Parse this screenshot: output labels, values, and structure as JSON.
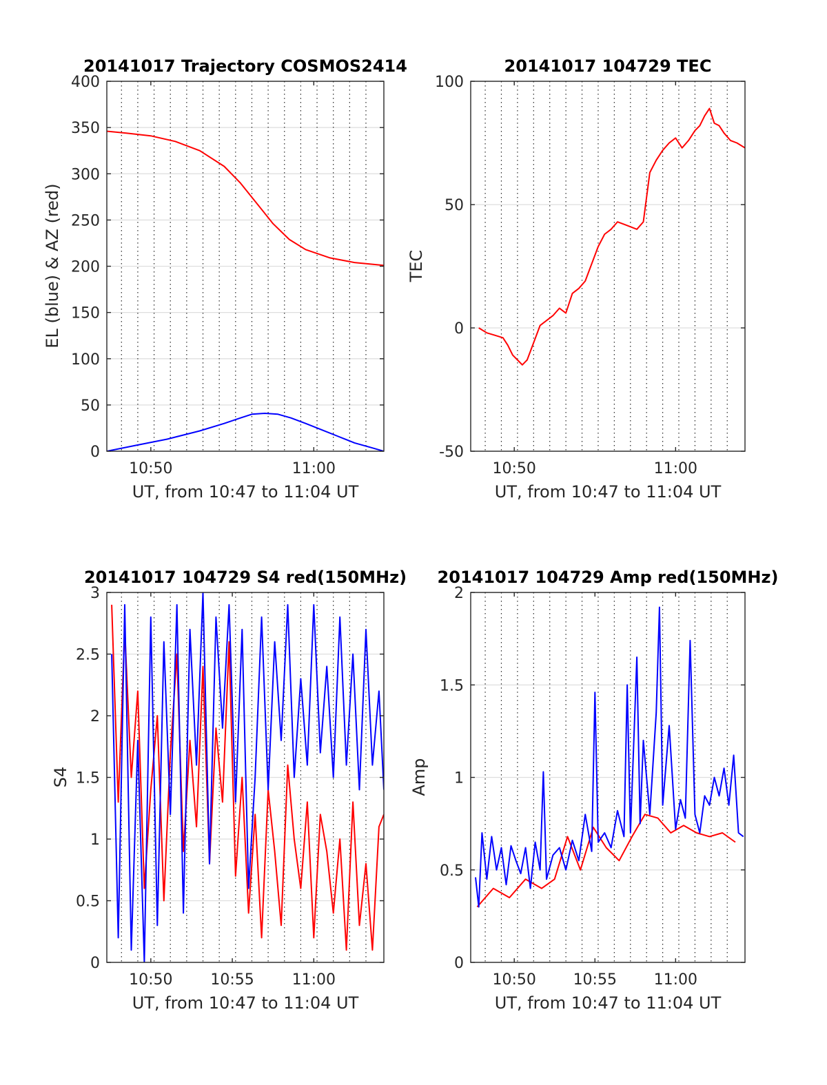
{
  "chart_data": [
    {
      "type": "line",
      "title": "20141017 Trajectory COSMOS2414",
      "xlabel": "UT, from 10:47 to 11:04 UT",
      "ylabel": "EL (blue) & AZ (red)",
      "x_unit": "minutes after 10:00 UT",
      "xlim": [
        47.3,
        64.3
      ],
      "ylim": [
        0,
        400
      ],
      "x_ticks": [
        50,
        60
      ],
      "x_tick_labels": [
        "10:50",
        "11:00"
      ],
      "y_ticks": [
        0,
        50,
        100,
        150,
        200,
        250,
        300,
        350,
        400
      ],
      "y_tick_labels": [
        "0",
        "50",
        "100",
        "150",
        "200",
        "250",
        "300",
        "350",
        "400"
      ],
      "dotted_x_gridlines": [
        48.2,
        49.2,
        50.2,
        51.2,
        52.2,
        53.2,
        54.2,
        55.2,
        56.2,
        57.2,
        58.2,
        59.2,
        60.2,
        61.2,
        62.2,
        63.2
      ],
      "grid": true,
      "series": [
        {
          "color": "#ff0000",
          "x": [
            47.3,
            48.5,
            50,
            51.5,
            53,
            54.5,
            55.5,
            56.5,
            57.5,
            58.5,
            59.5,
            61,
            62.5,
            64.3
          ],
          "y": [
            346,
            344,
            341,
            335,
            325,
            308,
            290,
            268,
            246,
            229,
            218,
            209,
            204,
            201
          ]
        },
        {
          "color": "#0000ff",
          "x": [
            47.3,
            49,
            51,
            53,
            54.5,
            55.5,
            56.2,
            57,
            57.8,
            58.6,
            59.5,
            60.5,
            61.5,
            62.5,
            63.5,
            64.3
          ],
          "y": [
            0,
            6,
            13,
            22,
            30,
            36,
            40,
            41,
            40,
            36,
            30,
            23,
            16,
            9,
            4,
            0
          ]
        }
      ]
    },
    {
      "type": "line",
      "title": "20141017 104729 TEC",
      "xlabel": "UT, from 10:47 to 11:04 UT",
      "ylabel": "TEC",
      "x_unit": "minutes after 10:00 UT",
      "xlim": [
        47.3,
        64.3
      ],
      "ylim": [
        -50,
        100
      ],
      "x_ticks": [
        50,
        60
      ],
      "x_tick_labels": [
        "10:50",
        "11:00"
      ],
      "y_ticks": [
        -50,
        0,
        50,
        100
      ],
      "y_tick_labels": [
        "-50",
        "0",
        "50",
        "100"
      ],
      "dotted_x_gridlines": [
        48.2,
        49.2,
        50.2,
        51.2,
        52.2,
        53.2,
        54.2,
        55.2,
        56.2,
        57.2,
        58.2,
        59.2,
        60.2,
        61.2,
        62.2,
        63.2
      ],
      "grid": true,
      "series": [
        {
          "color": "#ff0000",
          "x": [
            47.8,
            48.3,
            48.8,
            49.3,
            49.6,
            49.9,
            50.2,
            50.5,
            50.8,
            51.2,
            51.6,
            52,
            52.4,
            52.8,
            53.2,
            53.6,
            54,
            54.4,
            54.8,
            55.2,
            55.6,
            56,
            56.4,
            56.8,
            57.2,
            57.6,
            58,
            58.4,
            58.8,
            59.2,
            59.6,
            60,
            60.4,
            60.8,
            61.2,
            61.5,
            61.8,
            62.1,
            62.4,
            62.7,
            63,
            63.4,
            63.8,
            64.3
          ],
          "y": [
            0,
            -2,
            -3,
            -4,
            -7,
            -11,
            -13,
            -15,
            -13,
            -6,
            1,
            3,
            5,
            8,
            6,
            14,
            16,
            19,
            26,
            33,
            38,
            40,
            43,
            42,
            41,
            40,
            43,
            63,
            68,
            72,
            75,
            77,
            73,
            76,
            80,
            82,
            86,
            89,
            83,
            82,
            79,
            76,
            75,
            73
          ]
        }
      ]
    },
    {
      "type": "line",
      "title": "20141017 104729 S4 red(150MHz)",
      "xlabel": "UT, from 10:47 to 11:04 UT",
      "ylabel": "S4",
      "x_unit": "minutes after 10:00 UT",
      "xlim": [
        47.3,
        64.3
      ],
      "ylim": [
        0,
        3
      ],
      "x_ticks": [
        50,
        55,
        60
      ],
      "x_tick_labels": [
        "10:50",
        "10:55",
        "11:00"
      ],
      "y_ticks": [
        0,
        0.5,
        1,
        1.5,
        2,
        2.5,
        3
      ],
      "y_tick_labels": [
        "0",
        "0.5",
        "1",
        "1.5",
        "2",
        "2.5",
        "3"
      ],
      "dotted_x_gridlines": [
        48.2,
        49.2,
        50.2,
        51.2,
        52.2,
        53.2,
        54.2,
        55.2,
        56.2,
        57.2,
        58.2,
        59.2,
        60.2,
        61.2,
        62.2,
        63.2
      ],
      "grid": true,
      "series": [
        {
          "color": "#ff0000",
          "x": [
            47.6,
            48.0,
            48.4,
            48.8,
            49.2,
            49.6,
            50.0,
            50.4,
            50.8,
            51.2,
            51.6,
            52.0,
            52.4,
            52.8,
            53.2,
            53.6,
            54.0,
            54.4,
            54.8,
            55.2,
            55.6,
            56.0,
            56.4,
            56.8,
            57.2,
            57.6,
            58.0,
            58.4,
            58.8,
            59.2,
            59.6,
            60.0,
            60.4,
            60.8,
            61.2,
            61.6,
            62.0,
            62.4,
            62.8,
            63.2,
            63.6,
            64.0,
            64.3
          ],
          "y": [
            2.9,
            1.3,
            2.7,
            1.5,
            2.2,
            0.6,
            1.4,
            2.0,
            0.5,
            1.7,
            2.5,
            0.9,
            1.8,
            1.1,
            2.4,
            0.8,
            1.9,
            1.3,
            2.6,
            0.7,
            1.5,
            0.4,
            1.2,
            0.2,
            1.4,
            0.9,
            0.3,
            1.6,
            1.0,
            0.6,
            1.3,
            0.2,
            1.2,
            0.9,
            0.4,
            1.0,
            0.1,
            1.3,
            0.3,
            0.8,
            0.1,
            1.1,
            1.2
          ]
        },
        {
          "color": "#0000ff",
          "x": [
            47.6,
            48.0,
            48.4,
            48.8,
            49.2,
            49.6,
            50.0,
            50.4,
            50.8,
            51.2,
            51.6,
            52.0,
            52.4,
            52.8,
            53.2,
            53.6,
            54.0,
            54.4,
            54.8,
            55.2,
            55.6,
            56.0,
            56.4,
            56.8,
            57.2,
            57.6,
            58.0,
            58.4,
            58.8,
            59.2,
            59.6,
            60.0,
            60.4,
            60.8,
            61.2,
            61.6,
            62.0,
            62.4,
            62.8,
            63.2,
            63.6,
            64.0,
            64.3
          ],
          "y": [
            2.5,
            0.2,
            2.9,
            0.1,
            1.8,
            0.0,
            2.8,
            0.3,
            2.6,
            1.2,
            2.9,
            0.4,
            2.7,
            1.6,
            3.0,
            0.8,
            2.8,
            1.9,
            2.9,
            1.3,
            2.7,
            0.6,
            1.5,
            2.8,
            1.4,
            2.6,
            1.8,
            2.9,
            1.5,
            2.3,
            1.6,
            2.9,
            1.7,
            2.4,
            1.5,
            2.8,
            1.6,
            2.5,
            1.4,
            2.7,
            1.6,
            2.2,
            1.4
          ]
        }
      ]
    },
    {
      "type": "line",
      "title": "20141017 104729 Amp red(150MHz)",
      "xlabel": "UT, from 10:47 to 11:04 UT",
      "ylabel": "Amp",
      "x_unit": "minutes after 10:00 UT",
      "xlim": [
        47.3,
        64.3
      ],
      "ylim": [
        0,
        2
      ],
      "x_ticks": [
        50,
        55,
        60
      ],
      "x_tick_labels": [
        "10:50",
        "10:55",
        "11:00"
      ],
      "y_ticks": [
        0,
        0.5,
        1,
        1.5,
        2
      ],
      "y_tick_labels": [
        "0",
        "0.5",
        "1",
        "1.5",
        "2"
      ],
      "dotted_x_gridlines": [
        48.2,
        49.2,
        50.2,
        51.2,
        52.2,
        53.2,
        54.2,
        55.2,
        56.2,
        57.2,
        58.2,
        59.2,
        60.2,
        61.2,
        62.2,
        63.2
      ],
      "grid": true,
      "series": [
        {
          "color": "#ff0000",
          "x": [
            47.7,
            48.7,
            49.7,
            50.7,
            51.7,
            52.5,
            53.3,
            54.1,
            54.9,
            55.7,
            56.5,
            57.3,
            58.1,
            58.9,
            59.7,
            60.5,
            61.3,
            62.1,
            62.9,
            63.7
          ],
          "y": [
            0.3,
            0.4,
            0.35,
            0.45,
            0.4,
            0.45,
            0.68,
            0.5,
            0.73,
            0.62,
            0.55,
            0.68,
            0.8,
            0.78,
            0.7,
            0.74,
            0.7,
            0.68,
            0.7,
            0.65
          ]
        },
        {
          "color": "#0000ff",
          "x": [
            47.6,
            47.8,
            48.0,
            48.3,
            48.6,
            48.9,
            49.2,
            49.5,
            49.8,
            50.1,
            50.4,
            50.7,
            51.0,
            51.3,
            51.6,
            51.8,
            52.0,
            52.4,
            52.8,
            53.2,
            53.6,
            54.0,
            54.4,
            54.8,
            55.0,
            55.2,
            55.6,
            56.0,
            56.4,
            56.8,
            57.0,
            57.2,
            57.6,
            57.8,
            58.0,
            58.4,
            58.8,
            59.0,
            59.2,
            59.6,
            60.0,
            60.3,
            60.6,
            60.9,
            61.2,
            61.5,
            61.8,
            62.1,
            62.4,
            62.7,
            63.0,
            63.3,
            63.6,
            63.9,
            64.2
          ],
          "y": [
            0.46,
            0.3,
            0.7,
            0.45,
            0.68,
            0.5,
            0.62,
            0.42,
            0.63,
            0.55,
            0.48,
            0.62,
            0.4,
            0.65,
            0.5,
            1.03,
            0.45,
            0.58,
            0.62,
            0.5,
            0.66,
            0.55,
            0.8,
            0.6,
            1.46,
            0.65,
            0.7,
            0.62,
            0.82,
            0.68,
            1.5,
            0.7,
            1.65,
            0.75,
            1.2,
            0.8,
            1.35,
            1.92,
            0.85,
            1.28,
            0.72,
            0.88,
            0.78,
            1.74,
            0.8,
            0.7,
            0.9,
            0.85,
            1.0,
            0.9,
            1.05,
            0.85,
            1.12,
            0.7,
            0.68
          ]
        }
      ]
    }
  ]
}
